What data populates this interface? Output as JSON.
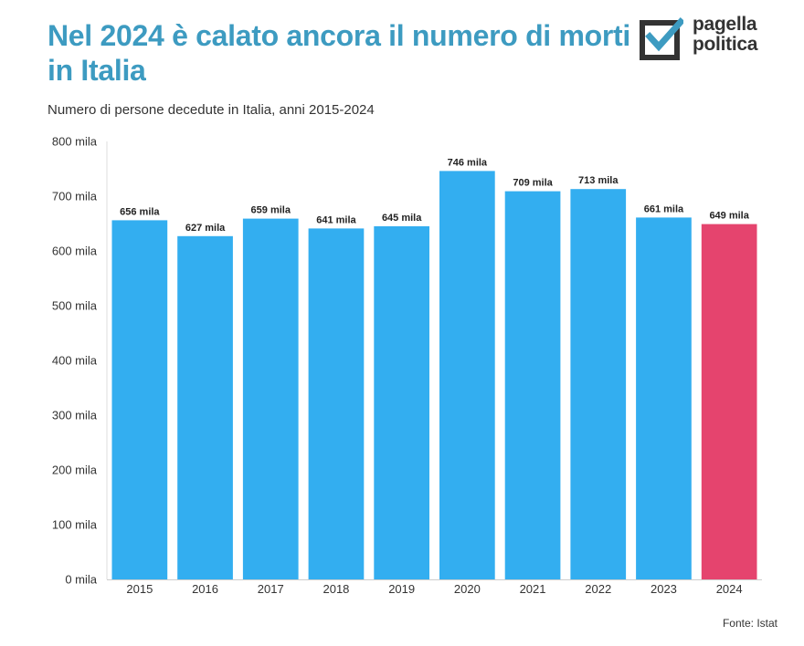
{
  "header": {
    "title": "Nel 2024 è calato ancora il numero di morti in Italia",
    "subtitle": "Numero di persone decedute in Italia, anni 2015-2024"
  },
  "logo": {
    "line1": "pagella",
    "line2": "politica",
    "icon": "checkbox-check-icon",
    "box_color": "#333333",
    "check_color": "#3d9bc1"
  },
  "footer": {
    "source": "Fonte: Istat"
  },
  "chart_data": {
    "type": "bar",
    "categories": [
      "2015",
      "2016",
      "2017",
      "2018",
      "2019",
      "2020",
      "2021",
      "2022",
      "2023",
      "2024"
    ],
    "values": [
      656,
      627,
      659,
      641,
      645,
      746,
      709,
      713,
      661,
      649
    ],
    "data_labels": [
      "656 mila",
      "627 mila",
      "659 mila",
      "641 mila",
      "645 mila",
      "746 mila",
      "709 mila",
      "713 mila",
      "661 mila",
      "649 mila"
    ],
    "y_ticks": [
      0,
      100,
      200,
      300,
      400,
      500,
      600,
      700,
      800
    ],
    "y_tick_labels": [
      "0 mila",
      "100 mila",
      "200 mila",
      "300 mila",
      "400 mila",
      "500 mila",
      "600 mila",
      "700 mila",
      "800 mila"
    ],
    "ylim": [
      0,
      800
    ],
    "grid": false,
    "legend": false,
    "colors": {
      "bar": "#33aef0",
      "highlight": "#e5446e",
      "highlight_category": "2024"
    }
  }
}
